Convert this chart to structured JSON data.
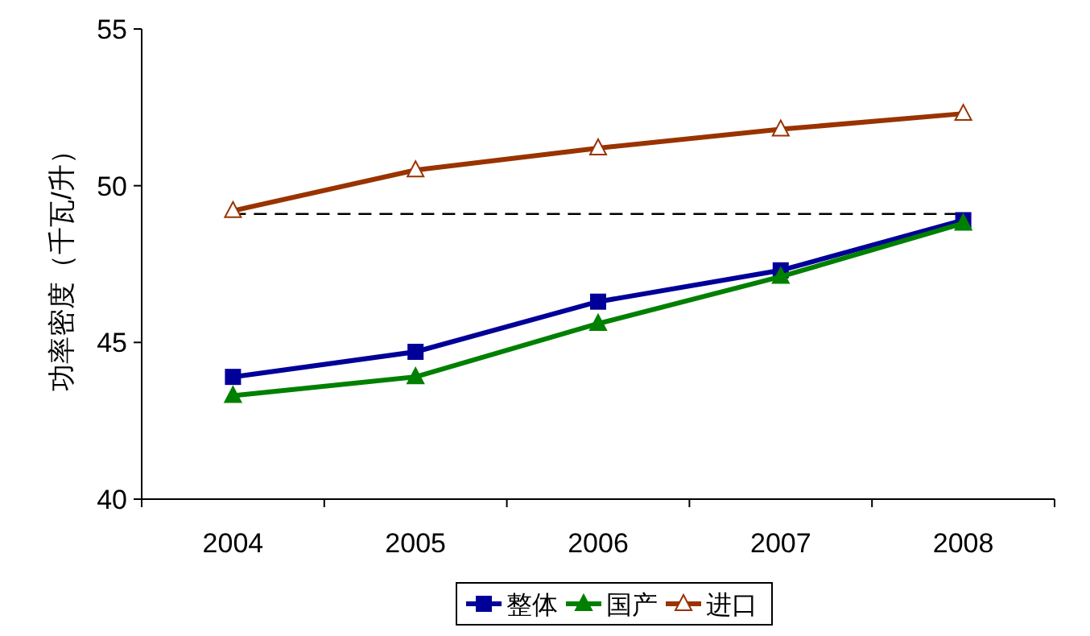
{
  "chart_data": {
    "type": "line",
    "ylabel": "功率密度（千瓦/升）",
    "categories": [
      "2004",
      "2005",
      "2006",
      "2007",
      "2008"
    ],
    "series": [
      {
        "name": "整体",
        "color": "#000099",
        "marker": "square",
        "values": [
          43.9,
          44.7,
          46.3,
          47.3,
          48.9
        ]
      },
      {
        "name": "国产",
        "color": "#008000",
        "marker": "triangle",
        "values": [
          43.3,
          43.9,
          45.6,
          47.1,
          48.8
        ]
      },
      {
        "name": "进口",
        "color": "#993300",
        "marker": "triangle",
        "values": [
          49.2,
          50.5,
          51.2,
          51.8,
          52.3
        ]
      }
    ],
    "ylim": [
      40,
      55
    ],
    "yticks": [
      40,
      45,
      50,
      55
    ],
    "grid": false,
    "legend": "bottom",
    "ref_lines": [
      {
        "axis": "y",
        "value": 49.1,
        "color": "#000000",
        "line_style": "dashed"
      }
    ]
  }
}
